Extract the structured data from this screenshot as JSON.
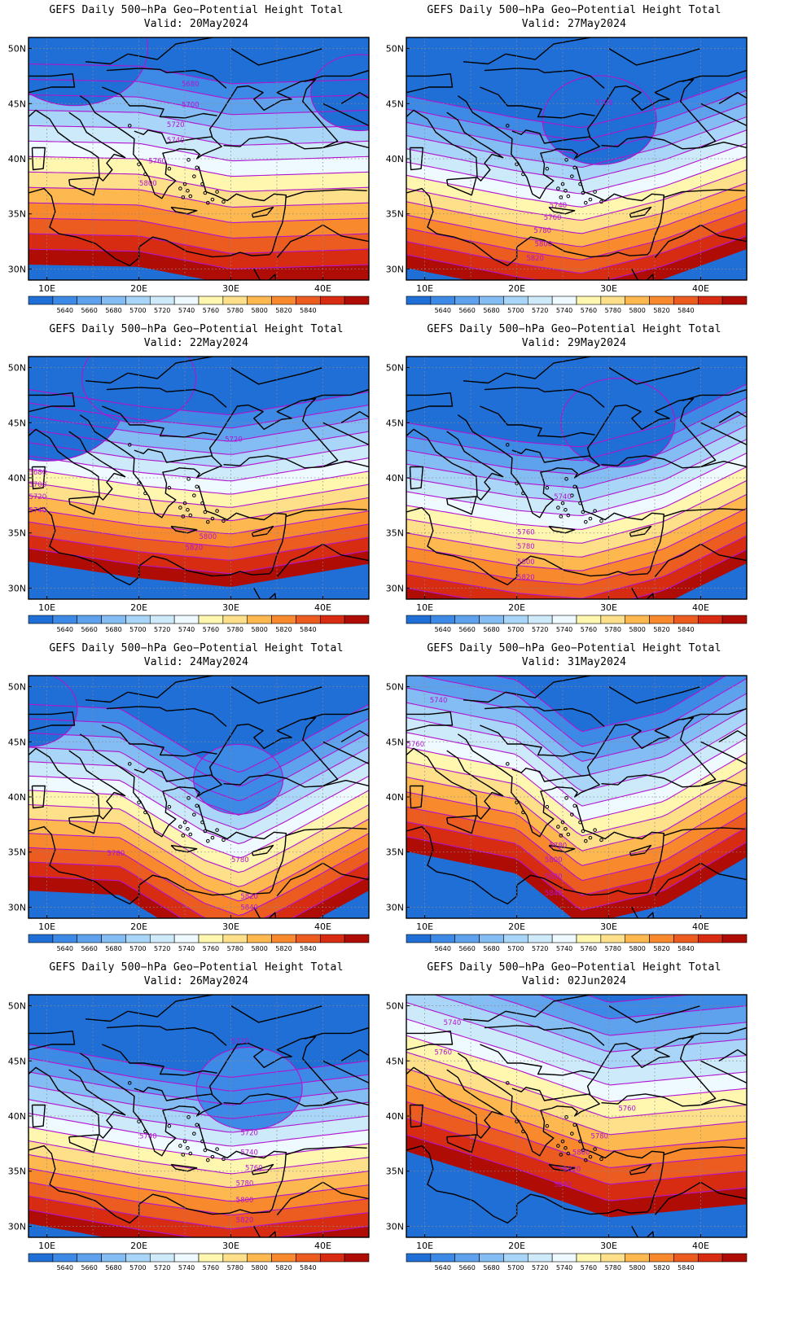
{
  "figure": {
    "title_line": "GEFS Daily 500−hPa Geo−Potential Height Total",
    "lat_labels": [
      "50N",
      "45N",
      "40N",
      "35N",
      "30N"
    ],
    "lon_labels": [
      "10E",
      "20E",
      "30E",
      "40E"
    ],
    "colorbar": {
      "ticks": [
        "5640",
        "5660",
        "5680",
        "5700",
        "5720",
        "5740",
        "5760",
        "5780",
        "5800",
        "5820",
        "5840"
      ],
      "colors": [
        "#1f6fd6",
        "#3d89e6",
        "#5ea2ee",
        "#83bdf3",
        "#a9d6f8",
        "#cdeafb",
        "#eefaff",
        "#fff6b0",
        "#ffe08a",
        "#fdb94f",
        "#f88a2d",
        "#ec5b20",
        "#d72b12",
        "#b00c06"
      ]
    },
    "contour_color": "#b214d0",
    "coastline_color": "#000000"
  },
  "panels": [
    {
      "valid": "Valid: 20May2024",
      "labels": [
        {
          "text": "5680",
          "lon": 25.6,
          "lat": 46.8
        },
        {
          "text": "5700",
          "lon": 25.6,
          "lat": 44.9
        },
        {
          "text": "5720",
          "lon": 24.0,
          "lat": 43.1
        },
        {
          "text": "5740",
          "lon": 24.0,
          "lat": 41.7
        },
        {
          "text": "5760",
          "lon": 22.0,
          "lat": 39.8
        },
        {
          "text": "5800",
          "lon": 21.0,
          "lat": 37.8
        }
      ]
    },
    {
      "valid": "Valid: 27May2024",
      "labels": [
        {
          "text": "5700",
          "lon": 29.5,
          "lat": 45.1
        },
        {
          "text": "5740",
          "lon": 24.5,
          "lat": 35.8
        },
        {
          "text": "5760",
          "lon": 23.9,
          "lat": 34.7
        },
        {
          "text": "5780",
          "lon": 22.8,
          "lat": 33.5
        },
        {
          "text": "5800",
          "lon": 22.9,
          "lat": 32.3
        },
        {
          "text": "5820",
          "lon": 22.0,
          "lat": 31.0
        }
      ]
    },
    {
      "valid": "Valid: 22May2024",
      "labels": [
        {
          "text": "5720",
          "lon": 30.3,
          "lat": 43.5
        },
        {
          "text": "5680",
          "lon": 9.0,
          "lat": 40.5
        },
        {
          "text": "5700",
          "lon": 9.0,
          "lat": 39.4
        },
        {
          "text": "5720",
          "lon": 9.0,
          "lat": 38.3
        },
        {
          "text": "5740",
          "lon": 9.0,
          "lat": 37.1
        },
        {
          "text": "5800",
          "lon": 27.5,
          "lat": 34.7
        },
        {
          "text": "5820",
          "lon": 26.0,
          "lat": 33.7
        }
      ]
    },
    {
      "valid": "Valid: 29May2024",
      "labels": [
        {
          "text": "5740",
          "lon": 25.0,
          "lat": 38.3
        },
        {
          "text": "5760",
          "lon": 21.0,
          "lat": 35.1
        },
        {
          "text": "5780",
          "lon": 21.0,
          "lat": 33.8
        },
        {
          "text": "5800",
          "lon": 21.0,
          "lat": 32.4
        },
        {
          "text": "5820",
          "lon": 21.0,
          "lat": 31.0
        }
      ]
    },
    {
      "valid": "Valid: 24May2024",
      "labels": [
        {
          "text": "5780",
          "lon": 17.5,
          "lat": 34.9
        },
        {
          "text": "5780",
          "lon": 31.0,
          "lat": 34.3
        },
        {
          "text": "5820",
          "lon": 32.0,
          "lat": 31.0
        },
        {
          "text": "5840",
          "lon": 32.0,
          "lat": 30.0
        }
      ]
    },
    {
      "valid": "Valid: 31May2024",
      "labels": [
        {
          "text": "5740",
          "lon": 11.5,
          "lat": 48.8
        },
        {
          "text": "5760",
          "lon": 9.0,
          "lat": 44.8
        },
        {
          "text": "5780",
          "lon": 24.5,
          "lat": 35.6
        },
        {
          "text": "5800",
          "lon": 24.0,
          "lat": 34.3
        },
        {
          "text": "5820",
          "lon": 24.0,
          "lat": 32.8
        },
        {
          "text": "5840",
          "lon": 24.0,
          "lat": 31.3
        }
      ]
    },
    {
      "valid": "Valid: 26May2024",
      "labels": [
        {
          "text": "5720",
          "lon": 31.0,
          "lat": 46.8
        },
        {
          "text": "5720",
          "lon": 32.0,
          "lat": 38.5
        },
        {
          "text": "5740",
          "lon": 21.0,
          "lat": 38.2
        },
        {
          "text": "5740",
          "lon": 32.0,
          "lat": 36.7
        },
        {
          "text": "5760",
          "lon": 32.5,
          "lat": 35.3
        },
        {
          "text": "5780",
          "lon": 31.5,
          "lat": 33.9
        },
        {
          "text": "5800",
          "lon": 31.5,
          "lat": 32.4
        },
        {
          "text": "5820",
          "lon": 31.5,
          "lat": 30.6
        }
      ]
    },
    {
      "valid": "Valid: 02Jun2024",
      "labels": [
        {
          "text": "5740",
          "lon": 13.0,
          "lat": 48.5
        },
        {
          "text": "5760",
          "lon": 12.0,
          "lat": 45.8
        },
        {
          "text": "5760",
          "lon": 32.0,
          "lat": 40.7
        },
        {
          "text": "5780",
          "lon": 29.0,
          "lat": 38.2
        },
        {
          "text": "5800",
          "lon": 27.0,
          "lat": 36.7
        },
        {
          "text": "5820",
          "lon": 26.0,
          "lat": 35.2
        },
        {
          "text": "5840",
          "lon": 25.0,
          "lat": 33.8
        }
      ]
    }
  ]
}
